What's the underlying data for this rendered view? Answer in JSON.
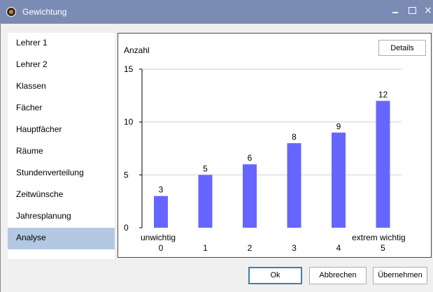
{
  "window": {
    "title": "Gewichtung",
    "minimize_glyph": "",
    "close_glyph": "×"
  },
  "sidebar": {
    "items": [
      {
        "label": "Lehrer 1",
        "active": false
      },
      {
        "label": "Lehrer 2",
        "active": false
      },
      {
        "label": "Klassen",
        "active": false
      },
      {
        "label": "Fächer",
        "active": false
      },
      {
        "label": "Hauptfächer",
        "active": false
      },
      {
        "label": "Räume",
        "active": false
      },
      {
        "label": "Stundenverteilung",
        "active": false
      },
      {
        "label": "Zeitwünsche",
        "active": false
      },
      {
        "label": "Jahresplanung",
        "active": false
      },
      {
        "label": "Analyse",
        "active": true
      }
    ]
  },
  "panel": {
    "details_label": "Details"
  },
  "chart_data": {
    "type": "bar",
    "ylabel": "Anzahl",
    "categories": [
      "0",
      "1",
      "2",
      "3",
      "4",
      "5"
    ],
    "values": [
      3,
      5,
      6,
      8,
      9,
      12
    ],
    "ylim": [
      0,
      15
    ],
    "yticks": [
      0,
      5,
      10,
      15
    ],
    "low_label": "unwichtig",
    "high_label": "extrem wichtig",
    "grid": true,
    "bar_color": "#6666ff"
  },
  "footer": {
    "ok_label": "Ok",
    "cancel_label": "Abbrechen",
    "accept_label": "Übernehmen"
  }
}
